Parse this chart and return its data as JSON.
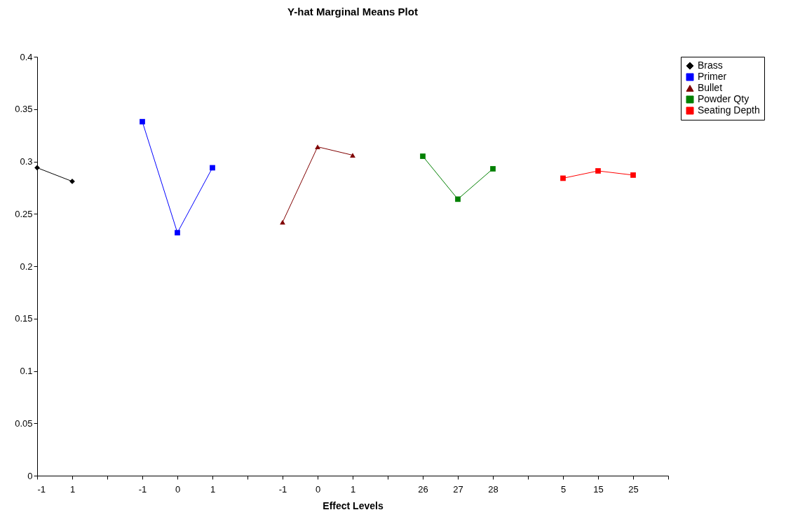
{
  "chart_data": {
    "type": "line",
    "title": "Y-hat Marginal Means Plot",
    "xlabel": "Effect Levels",
    "categories": [
      "-1",
      "1",
      null,
      "-1",
      "0",
      "1",
      null,
      "-1",
      "0",
      "1",
      null,
      "26",
      "27",
      "28",
      null,
      "5",
      "15",
      "25",
      null
    ],
    "ylim": [
      0,
      0.4
    ],
    "yticks": [
      0,
      0.05,
      0.1,
      0.15,
      0.2,
      0.25,
      0.3,
      0.35,
      0.4
    ],
    "grid": false,
    "legend": "right",
    "series": [
      {
        "name": "Brass",
        "color": "#000000",
        "marker": "diamond",
        "values": [
          0.294,
          0.281,
          null,
          null,
          null,
          null,
          null,
          null,
          null,
          null,
          null,
          null,
          null,
          null,
          null,
          null,
          null,
          null,
          null
        ]
      },
      {
        "name": "Primer",
        "color": "#0000ff",
        "marker": "square",
        "values": [
          null,
          null,
          null,
          0.338,
          0.232,
          0.294,
          null,
          null,
          null,
          null,
          null,
          null,
          null,
          null,
          null,
          null,
          null,
          null,
          null
        ]
      },
      {
        "name": "Bullet",
        "color": "#800000",
        "marker": "triangle",
        "values": [
          null,
          null,
          null,
          null,
          null,
          null,
          null,
          0.242,
          0.314,
          0.306,
          null,
          null,
          null,
          null,
          null,
          null,
          null,
          null,
          null
        ]
      },
      {
        "name": "Powder Qty",
        "color": "#008000",
        "marker": "square",
        "values": [
          null,
          null,
          null,
          null,
          null,
          null,
          null,
          null,
          null,
          null,
          null,
          0.305,
          0.264,
          0.293,
          null,
          null,
          null,
          null,
          null
        ]
      },
      {
        "name": "Seating Depth",
        "color": "#ff0000",
        "marker": "square",
        "values": [
          null,
          null,
          null,
          null,
          null,
          null,
          null,
          null,
          null,
          null,
          null,
          null,
          null,
          null,
          null,
          0.284,
          0.291,
          0.287,
          null
        ]
      }
    ]
  }
}
